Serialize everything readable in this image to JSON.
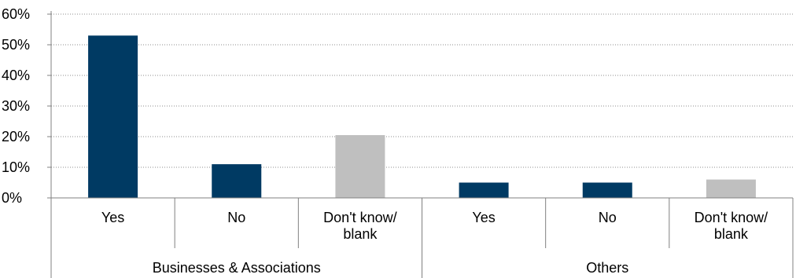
{
  "chart_data": {
    "type": "bar",
    "ylim": [
      0,
      60
    ],
    "yticks": [
      "0%",
      "10%",
      "20%",
      "30%",
      "40%",
      "50%",
      "60%"
    ],
    "ytick_values": [
      0,
      10,
      20,
      30,
      40,
      50,
      60
    ],
    "grid": true,
    "groups": [
      {
        "label": "Businesses & Associations",
        "bars": [
          {
            "label": "Yes",
            "value": 53,
            "color": "#003a63"
          },
          {
            "label": "No",
            "value": 11,
            "color": "#003a63"
          },
          {
            "label": "Don't know/\nblank",
            "value": 20.5,
            "color": "#bfbfbf"
          }
        ]
      },
      {
        "label": "Others",
        "bars": [
          {
            "label": "Yes",
            "value": 5,
            "color": "#003a63"
          },
          {
            "label": "No",
            "value": 5,
            "color": "#003a63"
          },
          {
            "label": "Don't know/\nblank",
            "value": 6,
            "color": "#bfbfbf"
          }
        ]
      }
    ]
  }
}
